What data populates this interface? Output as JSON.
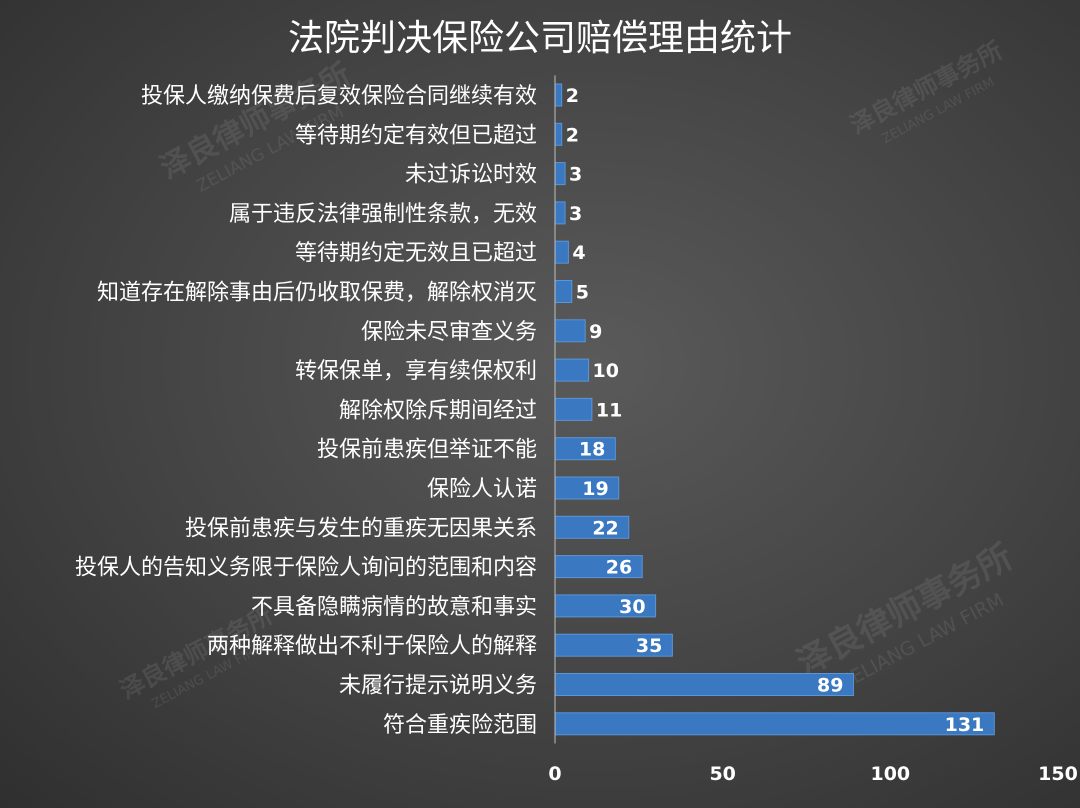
{
  "colors": {
    "bar": "#3a78c2",
    "bar_edge": "#5b95d6",
    "text": "#ffffff",
    "axis": "#bfbfbf"
  },
  "watermark": {
    "cn": "泽良律师事务所",
    "en": "ZELIANG LAW FIRM"
  },
  "chart_data": {
    "type": "bar",
    "orientation": "horizontal",
    "title": "法院判决保险公司赔偿理由统计",
    "xlabel": "",
    "ylabel": "",
    "xlim": [
      0,
      150
    ],
    "xticks": [
      0,
      50,
      100,
      150
    ],
    "grid": false,
    "legend": "none",
    "categories": [
      "投保人缴纳保费后复效保险合同继续有效",
      "等待期约定有效但已超过",
      "未过诉讼时效",
      "属于违反法律强制性条款，无效",
      "等待期约定无效且已超过",
      "知道存在解除事由后仍收取保费，解除权消灭",
      "保险未尽审查义务",
      "转保保单，享有续保权利",
      "解除权除斥期间经过",
      "投保前患疾但举证不能",
      "保险人认诺",
      "投保前患疾与发生的重疾无因果关系",
      "投保人的告知义务限于保险人询问的范围和内容",
      "不具备隐瞒病情的故意和事实",
      "两种解释做出不利于保险人的解释",
      "未履行提示说明义务",
      "符合重疾险范围"
    ],
    "values": [
      2,
      2,
      3,
      3,
      4,
      5,
      9,
      10,
      11,
      18,
      19,
      22,
      26,
      30,
      35,
      89,
      131
    ]
  }
}
